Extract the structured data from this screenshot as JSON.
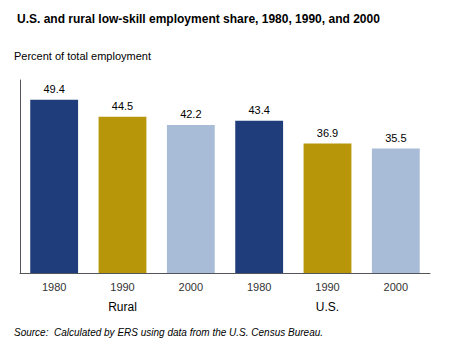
{
  "chart_data": {
    "type": "bar",
    "title": "U.S. and rural low-skill employment share, 1980, 1990, and 2000",
    "ylabel": "Percent of total employment",
    "source": "Source:  Calculated by ERS using data from the U.S. Census Bureau.",
    "groups": [
      "Rural",
      "U.S."
    ],
    "categories": [
      "1980",
      "1990",
      "2000",
      "1980",
      "1990",
      "2000"
    ],
    "values": [
      49.4,
      44.5,
      42.2,
      43.4,
      36.9,
      35.5
    ],
    "colors": [
      "#1e3d7a",
      "#b8960a",
      "#a8bcd8",
      "#1e3d7a",
      "#b8960a",
      "#a8bcd8"
    ],
    "ylim": [
      0,
      55
    ],
    "grid": false,
    "data_labels": true,
    "tick_labels": "x"
  }
}
